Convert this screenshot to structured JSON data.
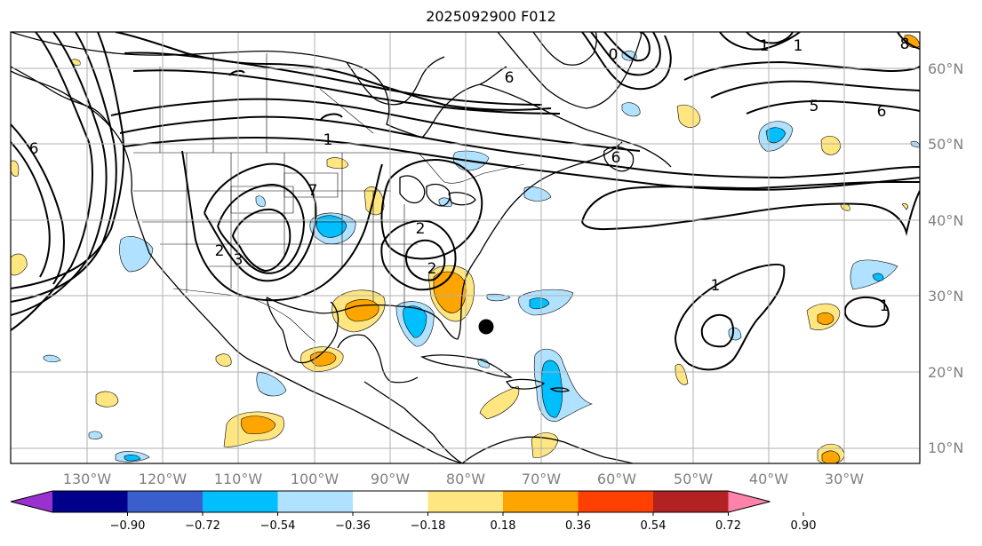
{
  "title": "2025092900 F012",
  "map": {
    "lat_labels": [
      "60°N",
      "50°N",
      "40°N",
      "30°N",
      "20°N",
      "10°N"
    ],
    "lon_labels": [
      "130°W",
      "120°W",
      "110°W",
      "100°W",
      "90°W",
      "80°W",
      "70°W",
      "60°W",
      "50°W",
      "40°W",
      "30°W"
    ],
    "contour_labels": [
      "1",
      "1",
      "2",
      "2",
      "3",
      "5",
      "6",
      "6",
      "6",
      "7",
      "1",
      "1",
      "2",
      "6",
      "0",
      "1",
      "8"
    ],
    "grid": true,
    "marker": "storm-center"
  },
  "colorbar": {
    "ticks": [
      "−0.90",
      "−0.72",
      "−0.54",
      "−0.36",
      "−0.18",
      "0.18",
      "0.36",
      "0.54",
      "0.72",
      "0.90"
    ],
    "colors": [
      "#9b30d0",
      "#00008b",
      "#3a5fcd",
      "#00bfff",
      "#b0e2ff",
      "#ffffff",
      "#ffe680",
      "#ffa500",
      "#ff4000",
      "#b22222",
      "#ff82ab"
    ],
    "extend": "both"
  }
}
